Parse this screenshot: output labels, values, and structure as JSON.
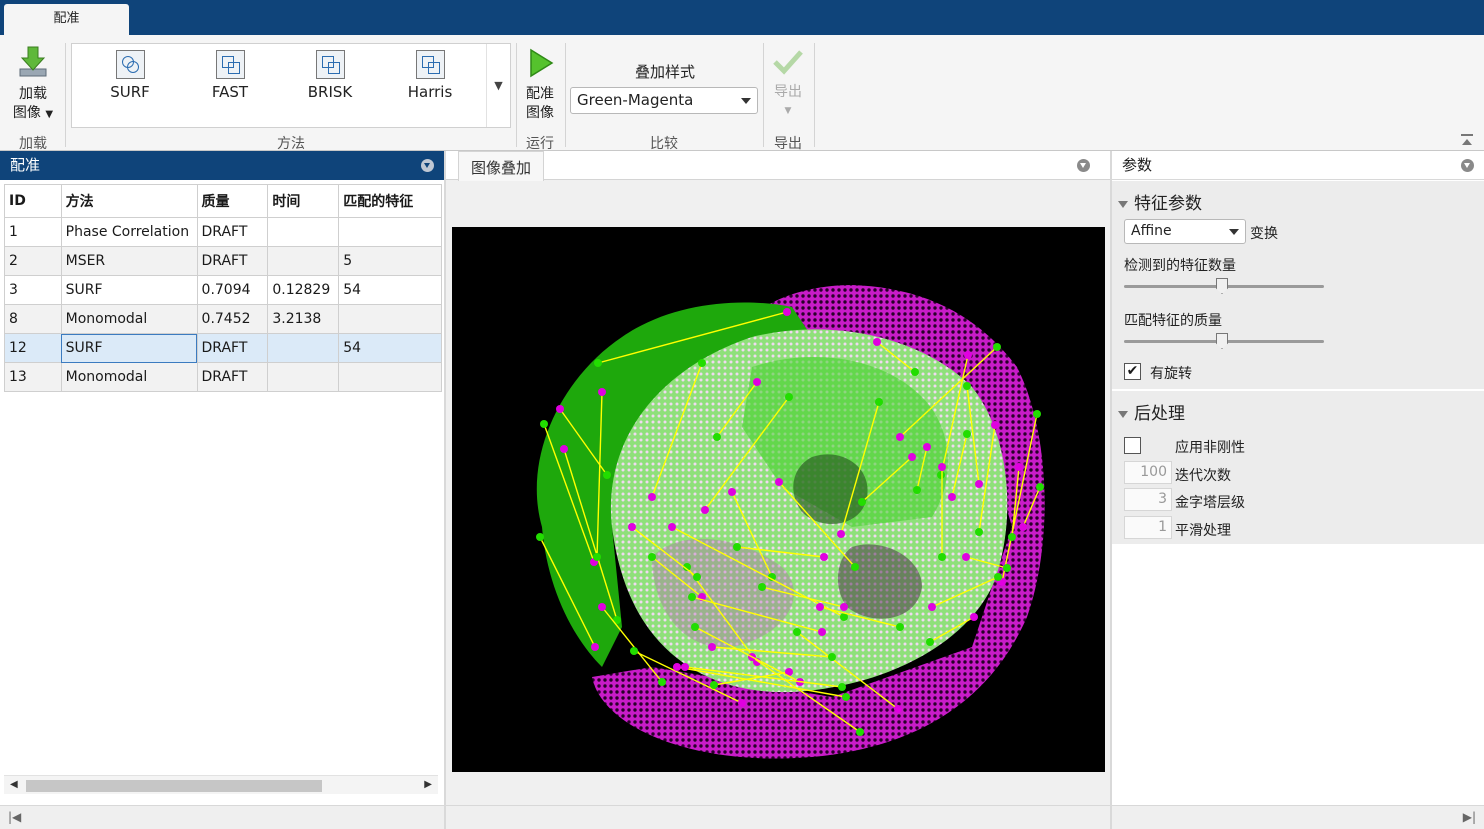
{
  "tabstrip": {
    "active_tab": "配准"
  },
  "ribbon": {
    "load": {
      "button_label_1": "加载",
      "button_label_2": "图像",
      "section": "加载"
    },
    "methods": {
      "items": [
        "SURF",
        "FAST",
        "BRISK",
        "Harris"
      ],
      "section": "方法"
    },
    "run": {
      "button_label_1": "配准",
      "button_label_2": "图像",
      "section": "运行"
    },
    "compare": {
      "style_label": "叠加样式",
      "style_value": "Green-Magenta",
      "section": "比较"
    },
    "export": {
      "button_label": "导出",
      "section": "导出"
    }
  },
  "left_panel": {
    "title": "配准",
    "columns": [
      "ID",
      "方法",
      "质量",
      "时间",
      "匹配的特征"
    ],
    "rows": [
      [
        "1",
        "Phase Correlation",
        "DRAFT",
        "",
        ""
      ],
      [
        "2",
        "MSER",
        "DRAFT",
        "",
        "5"
      ],
      [
        "3",
        "SURF",
        "0.7094",
        "0.12829",
        "54"
      ],
      [
        "8",
        "Monomodal",
        "0.7452",
        "3.2138",
        ""
      ],
      [
        "12",
        "SURF",
        "DRAFT",
        "",
        "54"
      ],
      [
        "13",
        "Monomodal",
        "DRAFT",
        "",
        ""
      ]
    ],
    "selected_row_index": 4
  },
  "center_panel": {
    "tab_label": "图像叠加"
  },
  "right_panel": {
    "title": "参数",
    "feature_section": {
      "title": "特征参数",
      "transform_value": "Affine",
      "transform_label": "变换",
      "num_features_label": "检测到的特征数量",
      "match_quality_label": "匹配特征的质量",
      "rotation_label": "有旋转",
      "rotation_checked": true
    },
    "post_section": {
      "title": "后处理",
      "nonrigid_label": "应用非刚性",
      "nonrigid_checked": false,
      "iterations_value": "100",
      "iterations_label": "迭代次数",
      "pyramid_value": "3",
      "pyramid_label": "金字塔层级",
      "smoothing_value": "1",
      "smoothing_label": "平滑处理"
    }
  },
  "colors": {
    "header_blue": "#0f447a",
    "overlay_green": "#22dd00",
    "overlay_magenta": "#e000e0",
    "match_line": "#ffff00",
    "selection": "#dbeaf8"
  },
  "icons": [
    "download-arrow-icon",
    "play-icon",
    "checkmark-icon",
    "dropdown-caret-icon",
    "pane-menu-icon"
  ]
}
